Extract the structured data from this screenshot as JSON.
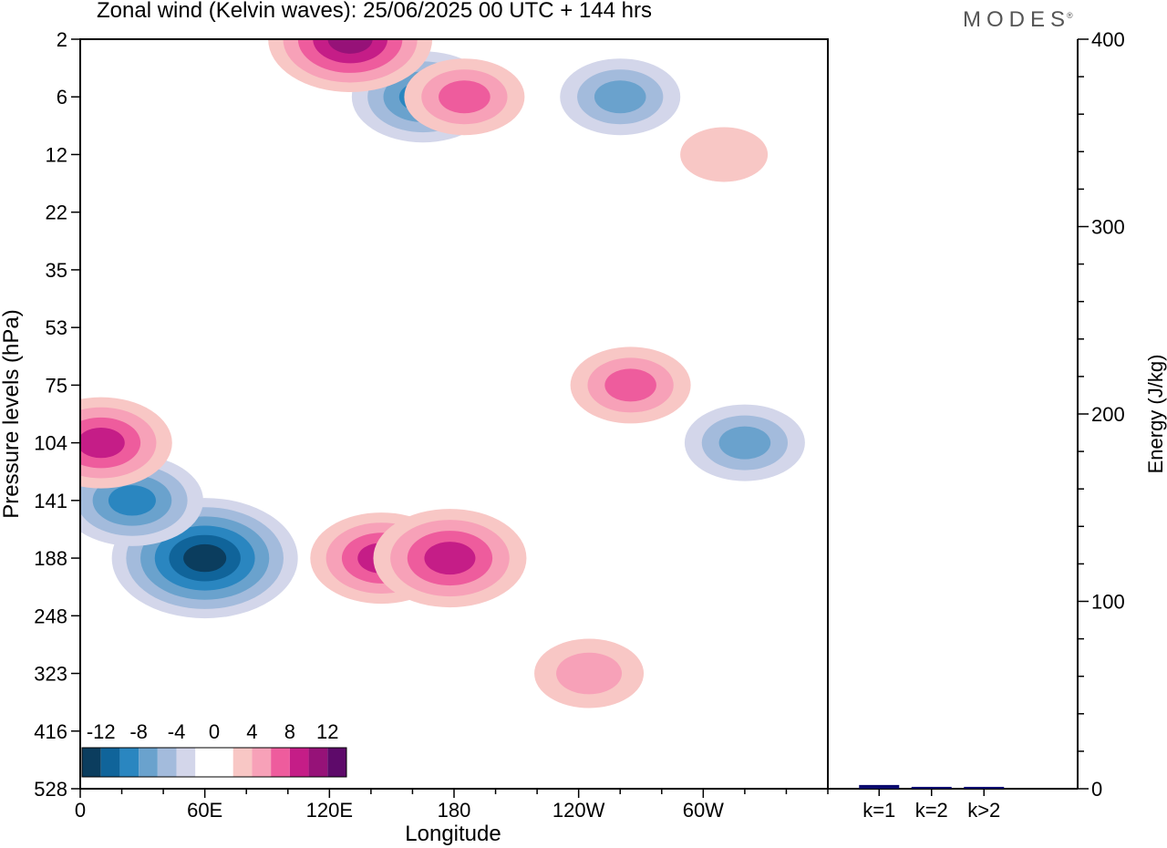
{
  "brand": "MODES",
  "brand_mark": "®",
  "chart_data": {
    "type": "heatmap",
    "title": "Zonal wind (Kelvin waves):  25/06/2025  00 UTC  + 144 hrs",
    "xlabel": "Longitude",
    "ylabel": "Pressure levels (hPa)",
    "x_ticks": [
      "0",
      "60E",
      "120E",
      "180",
      "120W",
      "60W"
    ],
    "x_tick_values": [
      0,
      60,
      120,
      180,
      240,
      300
    ],
    "xlim": [
      0,
      360
    ],
    "y_ticks": [
      "2",
      "6",
      "12",
      "22",
      "35",
      "53",
      "75",
      "104",
      "141",
      "188",
      "248",
      "323",
      "416",
      "528"
    ],
    "y_scale": "categorical pressure levels (top = 2 hPa, bottom = 528 hPa)",
    "colorbar": {
      "labels": [
        "-12",
        "-8",
        "-4",
        "0",
        "4",
        "8",
        "12"
      ],
      "colors": [
        "#0b3d5e",
        "#10649a",
        "#2a86c0",
        "#6aa2cd",
        "#a3bbdc",
        "#d3d6ea",
        "#ffffff",
        "#ffffff",
        "#f8c7c5",
        "#f7a1b8",
        "#ee5c9d",
        "#c51d87",
        "#961278",
        "#5e0a6a"
      ]
    },
    "anomalies": [
      {
        "lon": 60,
        "level": "188",
        "value": -12
      },
      {
        "lon": 25,
        "level": "141",
        "value": -8
      },
      {
        "lon": 10,
        "level": "104",
        "value": 8
      },
      {
        "lon": 165,
        "level": "6",
        "value": -8
      },
      {
        "lon": 260,
        "level": "6",
        "value": -6
      },
      {
        "lon": 130,
        "level": "2",
        "value": 10
      },
      {
        "lon": 185,
        "level": "6",
        "value": 6
      },
      {
        "lon": 145,
        "level": "188",
        "value": 8
      },
      {
        "lon": 178,
        "level": "188",
        "value": 9
      },
      {
        "lon": 245,
        "level": "323",
        "value": 5
      },
      {
        "lon": 265,
        "level": "75",
        "value": 6
      },
      {
        "lon": 320,
        "level": "104",
        "value": -6
      },
      {
        "lon": 310,
        "level": "12",
        "value": 3
      }
    ],
    "energy": {
      "type": "bar",
      "ylabel": "Energy (J/kg)",
      "categories": [
        "k=1",
        "k=2",
        "k>2"
      ],
      "values": [
        2,
        1,
        1
      ],
      "ylim": [
        0,
        400
      ],
      "y_ticks": [
        "0",
        "100",
        "200",
        "300",
        "400"
      ],
      "bar_color": "#0a0a6e"
    }
  }
}
